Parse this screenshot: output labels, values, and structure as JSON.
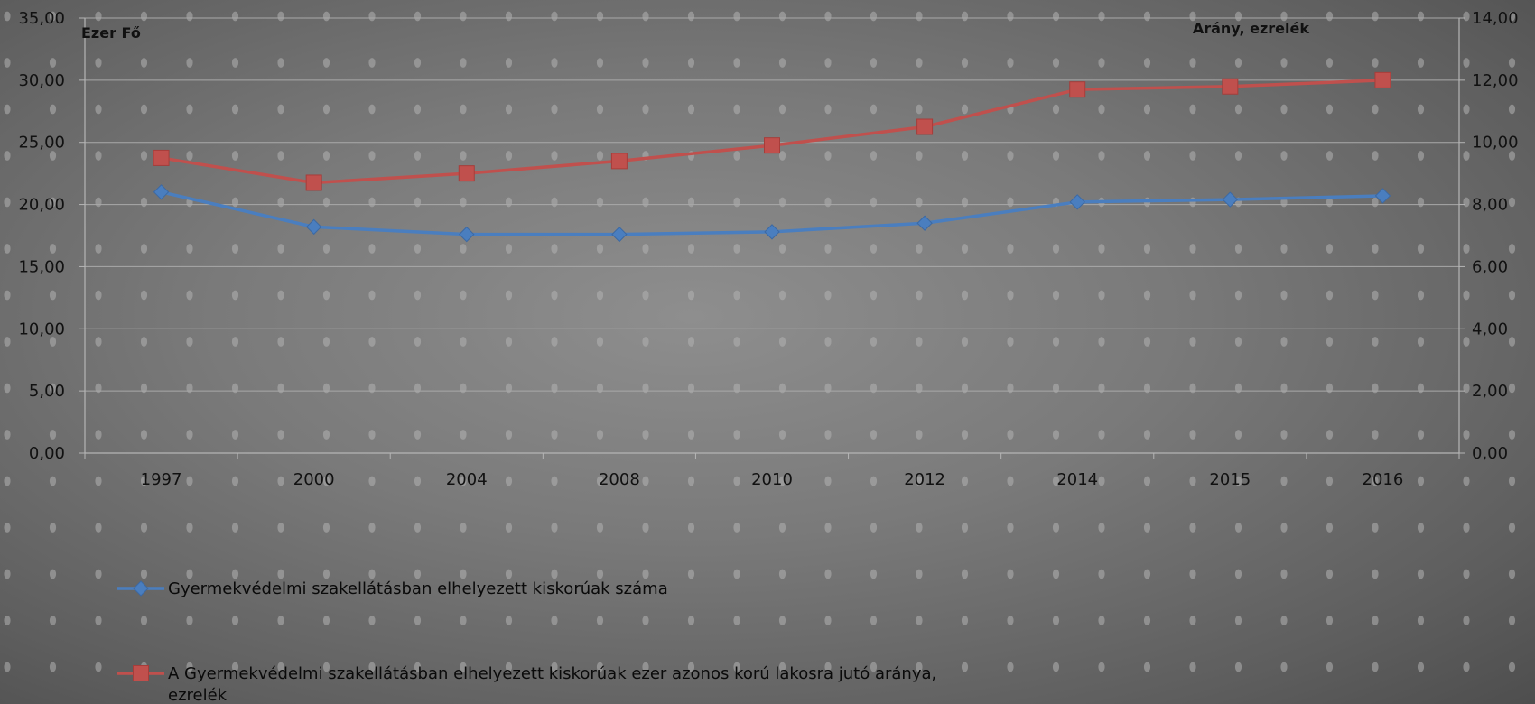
{
  "chart_data": {
    "type": "line",
    "categories": [
      "1997",
      "2000",
      "2004",
      "2008",
      "2010",
      "2012",
      "2014",
      "2015",
      "2016"
    ],
    "series": [
      {
        "name": "Gyermekvédelmi szakellátásban elhelyezett kiskorúak száma",
        "axis": "left",
        "color": "#4a7ebf",
        "marker": "diamond",
        "values": [
          21.0,
          18.2,
          17.6,
          17.6,
          17.8,
          18.5,
          20.2,
          20.4,
          20.7
        ]
      },
      {
        "name": "A Gyermekvédelmi szakellátásban elhelyezett kiskorúak ezer azonos korú lakosra jutó aránya, ezrelék",
        "axis": "right",
        "color": "#c0504d",
        "marker": "square",
        "values": [
          9.5,
          8.7,
          9.0,
          9.4,
          9.9,
          10.5,
          11.7,
          11.8,
          12.0
        ]
      }
    ],
    "ylabel": "Ezer Fő",
    "ylabel_right": "Arány, ezrelék",
    "ylim": [
      0,
      35
    ],
    "ylim_right": [
      0,
      14
    ],
    "yticks": [
      "0,00",
      "5,00",
      "10,00",
      "15,00",
      "20,00",
      "25,00",
      "30,00",
      "35,00"
    ],
    "yticks_right": [
      "0,00",
      "2,00",
      "4,00",
      "6,00",
      "8,00",
      "10,00",
      "12,00",
      "14,00"
    ],
    "grid": true,
    "legend_position": "bottom-left",
    "legend_lines": [
      [
        "Gyermekvédelmi szakellátásban elhelyezett kiskorúak száma"
      ],
      [
        "A Gyermekvédelmi szakellátásban elhelyezett kiskorúak ezer azonos korú lakosra jutó aránya,",
        "ezrelék"
      ]
    ]
  }
}
